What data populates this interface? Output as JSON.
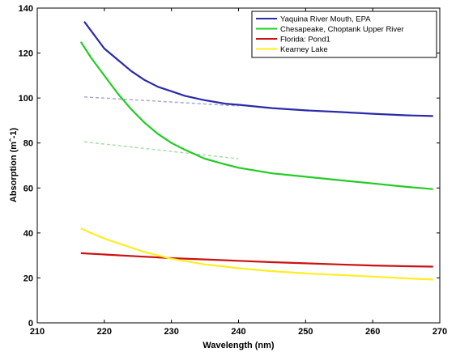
{
  "chart_data": {
    "type": "line",
    "xlabel": "Wavelength (nm)",
    "ylabel": "Absorption (mˆ-1)",
    "xlim": [
      210,
      270
    ],
    "ylim": [
      0,
      140
    ],
    "xticks": [
      210,
      220,
      230,
      240,
      250,
      260,
      270
    ],
    "yticks": [
      0,
      20,
      40,
      60,
      80,
      100,
      120,
      140
    ],
    "grid": false,
    "legend_position": "top-right",
    "series": [
      {
        "name": "Yaquina River Mouth, EPA",
        "color": "#2a2aa8",
        "x": [
          217,
          218,
          219,
          220,
          222,
          224,
          226,
          228,
          230,
          232,
          235,
          238,
          240,
          245,
          250,
          255,
          260,
          265,
          269
        ],
        "y": [
          134,
          130,
          126,
          122,
          117,
          112,
          108,
          105,
          103,
          101,
          99,
          97.5,
          97,
          95.5,
          94.5,
          93.8,
          93,
          92.3,
          92
        ]
      },
      {
        "name": "Chesapeake, Choptank Upper River",
        "color": "#22cc22",
        "x": [
          216.5,
          218,
          220,
          222,
          224,
          226,
          228,
          230,
          232,
          235,
          238,
          240,
          245,
          250,
          255,
          260,
          265,
          269
        ],
        "y": [
          125,
          118,
          110,
          102,
          95,
          89,
          84,
          80,
          77,
          73,
          70.5,
          69,
          66.5,
          65,
          63.5,
          62,
          60.5,
          59.5
        ]
      },
      {
        "name": "Florida: Pond1",
        "color": "#cc1111",
        "x": [
          216.5,
          220,
          225,
          230,
          235,
          240,
          245,
          250,
          255,
          260,
          265,
          269
        ],
        "y": [
          31,
          30.4,
          29.6,
          28.8,
          28.2,
          27.6,
          27,
          26.5,
          26,
          25.5,
          25.2,
          25
        ]
      },
      {
        "name": "Kearney Lake",
        "color": "#ffee22",
        "x": [
          216.5,
          218,
          220,
          222,
          224,
          226,
          228,
          230,
          232,
          235,
          238,
          240,
          245,
          250,
          255,
          260,
          265,
          269
        ],
        "y": [
          42,
          40,
          37.5,
          35.5,
          33.5,
          31.5,
          30,
          28.5,
          27.5,
          26,
          25,
          24.3,
          23,
          22,
          21.3,
          20.6,
          19.8,
          19.3
        ]
      }
    ],
    "reference_lines": [
      {
        "color": "#a8a8d8",
        "x": [
          217,
          240
        ],
        "y": [
          100.5,
          96.5
        ]
      },
      {
        "color": "#aadcaa",
        "x": [
          217,
          240
        ],
        "y": [
          80.5,
          73
        ]
      }
    ]
  }
}
